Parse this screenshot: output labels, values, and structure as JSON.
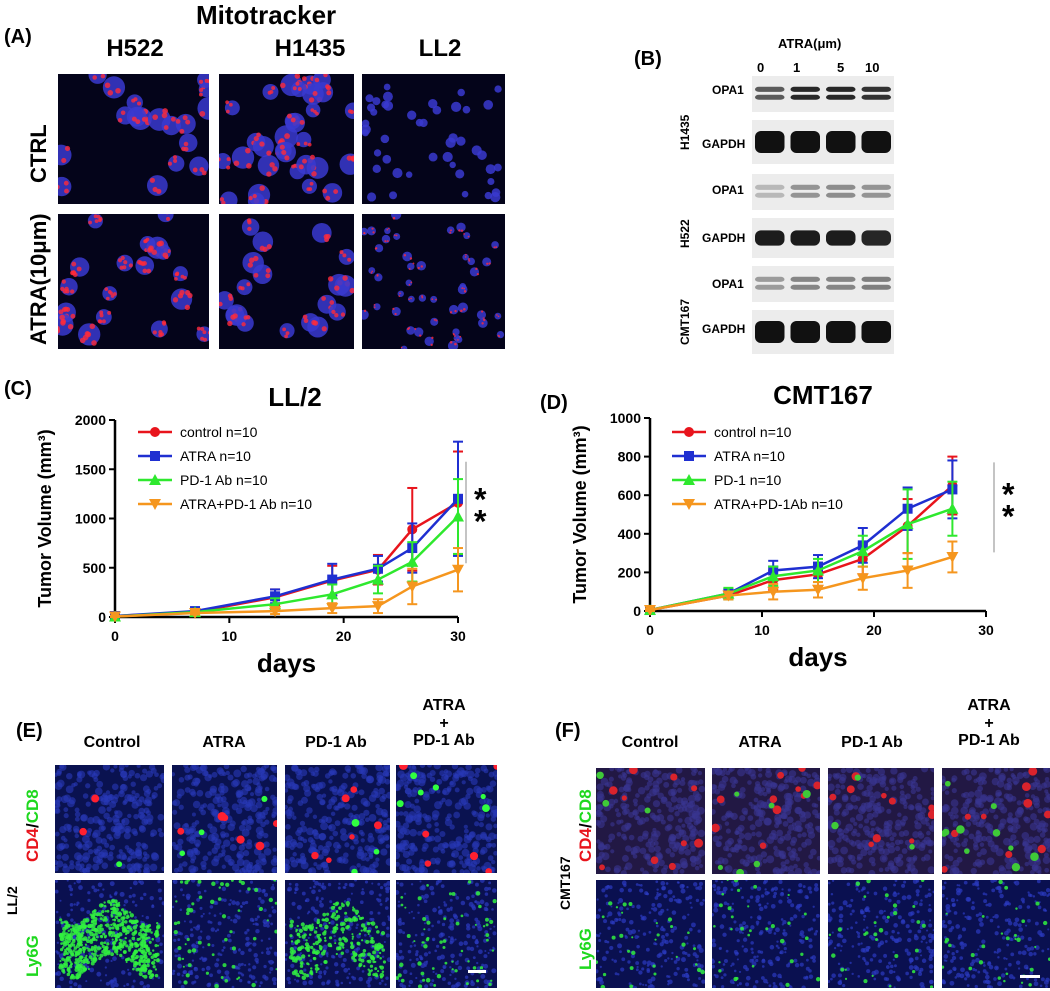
{
  "panelA": {
    "letter": "(A)",
    "title": "Mitotracker",
    "columns": [
      "H522",
      "H1435",
      "LL2"
    ],
    "rows": [
      "CTRL",
      "ATRA(10μm)"
    ]
  },
  "panelB": {
    "letter": "(B)",
    "treatment": "ATRA(μm)",
    "doses": [
      "0",
      "1",
      "5",
      "10"
    ],
    "groups": [
      {
        "cell_line": "H1435",
        "bands": [
          "OPA1",
          "GAPDH"
        ]
      },
      {
        "cell_line": "H522",
        "bands": [
          "OPA1",
          "GAPDH"
        ]
      },
      {
        "cell_line": "CMT167",
        "bands": [
          "OPA1",
          "GAPDH"
        ]
      }
    ]
  },
  "panelC": {
    "letter": "(C)",
    "chart_data": {
      "type": "line",
      "title": "LL/2",
      "xlabel": "days",
      "ylabel": "Tumor Volume (mm³)",
      "xlim": [
        0,
        30
      ],
      "ylim": [
        0,
        2000
      ],
      "xticks": [
        0,
        10,
        20,
        30
      ],
      "yticks": [
        0,
        500,
        1000,
        1500,
        2000
      ],
      "x": [
        0,
        7,
        14,
        19,
        23,
        26,
        30
      ],
      "significance": "* *",
      "series": [
        {
          "name": "control n=10",
          "color": "#e8141c",
          "marker": "circle",
          "values": [
            10,
            50,
            200,
            370,
            480,
            890,
            1160
          ],
          "err": [
            10,
            20,
            80,
            150,
            150,
            420,
            520
          ]
        },
        {
          "name": "ATRA n=10",
          "color": "#1f2fd1",
          "marker": "square",
          "values": [
            10,
            60,
            210,
            380,
            490,
            700,
            1200
          ],
          "err": [
            10,
            20,
            70,
            160,
            130,
            250,
            580
          ]
        },
        {
          "name": "PD-1 Ab n=10",
          "color": "#2ee82e",
          "marker": "triangle-up",
          "values": [
            5,
            50,
            130,
            230,
            380,
            560,
            1020
          ],
          "err": [
            5,
            20,
            60,
            100,
            140,
            200,
            380
          ]
        },
        {
          "name": "ATRA+PD-1 Ab n=10",
          "color": "#f5961e",
          "marker": "triangle-down",
          "values": [
            5,
            40,
            60,
            90,
            110,
            310,
            480
          ],
          "err": [
            5,
            15,
            30,
            50,
            70,
            180,
            220
          ]
        }
      ]
    }
  },
  "panelD": {
    "letter": "(D)",
    "chart_data": {
      "type": "line",
      "title": "CMT167",
      "xlabel": "days",
      "ylabel": "Tumor Volume (mm³)",
      "xlim": [
        0,
        30
      ],
      "ylim": [
        0,
        1000
      ],
      "xticks": [
        0,
        10,
        20,
        30
      ],
      "yticks": [
        0,
        200,
        400,
        600,
        800,
        1000
      ],
      "x": [
        0,
        7,
        11,
        15,
        19,
        23,
        27
      ],
      "significance": "* *",
      "series": [
        {
          "name": "control n=10",
          "color": "#e8141c",
          "marker": "circle",
          "values": [
            5,
            80,
            160,
            190,
            270,
            440,
            650
          ],
          "err": [
            5,
            20,
            50,
            60,
            80,
            140,
            150
          ]
        },
        {
          "name": "ATRA n=10",
          "color": "#1f2fd1",
          "marker": "square",
          "values": [
            5,
            90,
            210,
            230,
            340,
            530,
            630
          ],
          "err": [
            5,
            25,
            50,
            60,
            90,
            110,
            150
          ]
        },
        {
          "name": "PD-1 n=10",
          "color": "#2ee82e",
          "marker": "triangle-up",
          "values": [
            5,
            90,
            180,
            210,
            310,
            450,
            530
          ],
          "err": [
            5,
            30,
            50,
            60,
            80,
            180,
            140
          ]
        },
        {
          "name": "ATRA+PD-1Ab n=10",
          "color": "#f5961e",
          "marker": "triangle-down",
          "values": [
            5,
            80,
            100,
            110,
            170,
            210,
            280
          ],
          "err": [
            5,
            20,
            40,
            40,
            60,
            90,
            80
          ]
        }
      ]
    }
  },
  "panelE": {
    "letter": "(E)",
    "model": "LL/2",
    "columns": [
      "Control",
      "ATRA",
      "PD-1 Ab",
      "ATRA\n+\nPD-1 Ab"
    ],
    "col4": {
      "top": "ATRA",
      "plus": "+",
      "bottom": "PD-1 Ab"
    },
    "stain1": {
      "red": "CD4",
      "slash": "/",
      "green": "CD8"
    },
    "stain2": "Ly6G"
  },
  "panelF": {
    "letter": "(F)",
    "model": "CMT167",
    "columns": [
      "Control",
      "ATRA",
      "PD-1 Ab",
      "ATRA\n+\nPD-1 Ab"
    ],
    "col4": {
      "top": "ATRA",
      "plus": "+",
      "bottom": "PD-1 Ab"
    },
    "stain1": {
      "red": "CD4",
      "slash": "/",
      "green": "CD8"
    },
    "stain2": "Ly6G"
  },
  "colors": {
    "red_stain": "#e8141c",
    "green_stain": "#1ed81e",
    "nucleus_blue": "#1a2fb8"
  }
}
